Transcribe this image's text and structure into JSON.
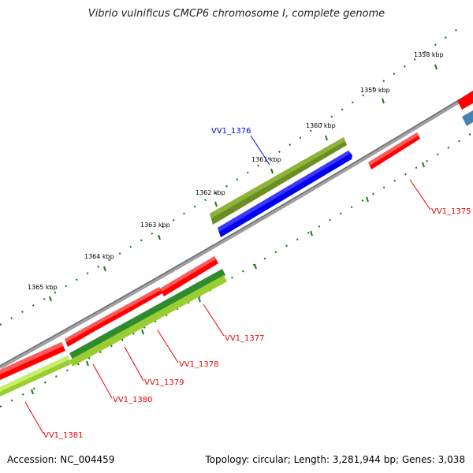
{
  "title": "Vibrio vulnificus CMCP6 chromosome I, complete genome",
  "footer": {
    "accession_label": "Accession:",
    "accession": "NC_004459",
    "topology_label": "Topology:",
    "topology": "circular",
    "length_label": "Length:",
    "length": "3,281,944 bp",
    "genes_label": "Genes:",
    "genes": "3,038"
  },
  "ticks": [
    "1358 kbp",
    "1359 kbp",
    "1360 kbp",
    "1361 kbp",
    "1362 kbp",
    "1363 kbp",
    "1364 kbp",
    "1365 kbp"
  ],
  "genes": [
    {
      "name": "VV1_1375",
      "strand": "-",
      "color": "#ff0000"
    },
    {
      "name": "VV1_1376",
      "strand": "+",
      "color": "#0000ee"
    },
    {
      "name": "VV1_1377",
      "strand": "-",
      "color": "#ff0000"
    },
    {
      "name": "VV1_1378",
      "strand": "-",
      "color": "#ff0000"
    },
    {
      "name": "VV1_1379",
      "strand": "-",
      "color": "#ff0000"
    },
    {
      "name": "VV1_1380",
      "strand": "-",
      "color": "#ff0000"
    },
    {
      "name": "VV1_1381",
      "strand": "-",
      "color": "#ff0000"
    }
  ],
  "colors": {
    "forward_label": "#0000ee",
    "reverse_label": "#ee0000",
    "backbone": "#808080",
    "tick": "#1a7a1a",
    "olive": "#6b8e23",
    "dark_green": "#2e8b2e",
    "lime": "#9acd32",
    "steel_blue": "#4682b4"
  }
}
